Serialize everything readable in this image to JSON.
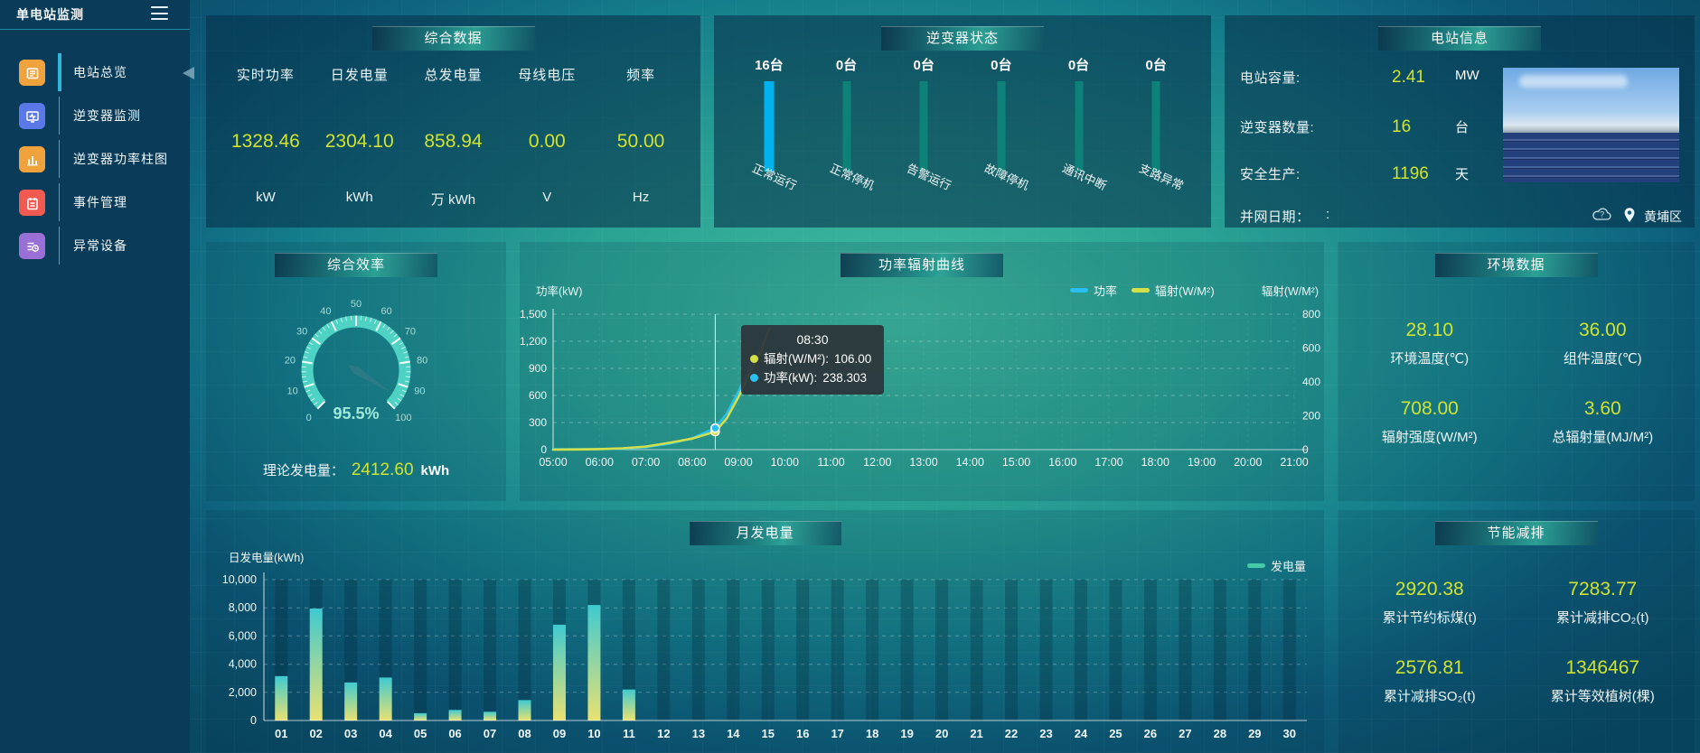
{
  "app": {
    "title": "单电站监测"
  },
  "sidebar": {
    "items": [
      {
        "label": "电站总览",
        "active": true
      },
      {
        "label": "逆变器监测",
        "active": false
      },
      {
        "label": "逆变器功率柱图",
        "active": false
      },
      {
        "label": "事件管理",
        "active": false
      },
      {
        "label": "异常设备",
        "active": false
      }
    ]
  },
  "panels": {
    "summary": {
      "title": "综合数据",
      "metrics": [
        {
          "label": "实时功率",
          "value": "1328.46",
          "unit": "kW"
        },
        {
          "label": "日发电量",
          "value": "2304.10",
          "unit": "kWh"
        },
        {
          "label": "总发电量",
          "value": "858.94",
          "unit": "万 kWh"
        },
        {
          "label": "母线电压",
          "value": "0.00",
          "unit": "V"
        },
        {
          "label": "频率",
          "value": "50.00",
          "unit": "Hz"
        }
      ]
    },
    "inverter_status": {
      "title": "逆变器状态",
      "bars": [
        {
          "count": "16台",
          "label": "正常运行",
          "highlight": true
        },
        {
          "count": "0台",
          "label": "正常停机",
          "highlight": false
        },
        {
          "count": "0台",
          "label": "告警运行",
          "highlight": false
        },
        {
          "count": "0台",
          "label": "故障停机",
          "highlight": false
        },
        {
          "count": "0台",
          "label": "通讯中断",
          "highlight": false
        },
        {
          "count": "0台",
          "label": "支路异常",
          "highlight": false
        }
      ]
    },
    "station_info": {
      "title": "电站信息",
      "rows": [
        {
          "label": "电站容量:",
          "value": "2.41",
          "unit": "MW"
        },
        {
          "label": "逆变器数量:",
          "value": "16",
          "unit": "台"
        },
        {
          "label": "安全生产:",
          "value": "1196",
          "unit": "天"
        },
        {
          "label": "并网日期：",
          "value": ":",
          "unit": ""
        }
      ],
      "location": "黄埔区"
    },
    "efficiency": {
      "title": "综合效率",
      "theory_label": "理论发电量：",
      "theory_value": "2412.60",
      "theory_unit": "kWh"
    },
    "power_chart": {
      "title": "功率辐射曲线",
      "y_left": "功率(kW)",
      "y_right": "辐射(W/M²)",
      "legend": [
        {
          "label": "功率",
          "color": "#29c0f0"
        },
        {
          "label": "辐射(W/M²)",
          "color": "#d4e04a"
        }
      ],
      "tooltip": {
        "time": "08:30",
        "rows": [
          {
            "label": "辐射(W/M²):",
            "value": "106.00",
            "color": "#d4e04a"
          },
          {
            "label": "功率(kW):",
            "value": "238.303",
            "color": "#29c0f0"
          }
        ]
      }
    },
    "environment": {
      "title": "环境数据",
      "metrics": [
        {
          "value": "28.10",
          "label": "环境温度(℃)"
        },
        {
          "value": "36.00",
          "label": "组件温度(℃)"
        },
        {
          "value": "708.00",
          "label": "辐射强度(W/M²)"
        },
        {
          "value": "3.60",
          "label": "总辐射量(MJ/M²)"
        }
      ]
    },
    "monthly": {
      "title": "月发电量",
      "y_label": "日发电量(kWh)",
      "legend": "发电量"
    },
    "saving": {
      "title": "节能减排",
      "metrics": [
        {
          "value": "2920.38",
          "label": "累计节约标煤(t)"
        },
        {
          "value": "7283.77",
          "label": "累计减排CO₂(t)"
        },
        {
          "value": "2576.81",
          "label": "累计减排SO₂(t)"
        },
        {
          "value": "1346467",
          "label": "累计等效植树(棵)"
        }
      ]
    }
  },
  "chart_data": [
    {
      "type": "gauge",
      "title": "综合效率",
      "min": 0,
      "max": 100,
      "tick_step": 10,
      "value": 95.5,
      "value_label": "95.5%",
      "band_color": "#4dd2c3"
    },
    {
      "type": "line",
      "title": "功率辐射曲线",
      "x_range": [
        5,
        21
      ],
      "x_ticks": [
        "05:00",
        "06:00",
        "07:00",
        "08:00",
        "09:00",
        "10:00",
        "11:00",
        "12:00",
        "13:00",
        "14:00",
        "15:00",
        "16:00",
        "17:00",
        "18:00",
        "19:00",
        "20:00",
        "21:00"
      ],
      "ylim_left": [
        0,
        1500
      ],
      "ytick_step_left": 300,
      "ylim_right": [
        0,
        800
      ],
      "ytick_step_right": 200,
      "series": [
        {
          "name": "功率",
          "axis": "left",
          "color": "#29c0f0",
          "points": [
            [
              5,
              4
            ],
            [
              5.5,
              4
            ],
            [
              6,
              6
            ],
            [
              6.5,
              10
            ],
            [
              7,
              28
            ],
            [
              7.5,
              65
            ],
            [
              8,
              125
            ],
            [
              8.5,
              238.3
            ],
            [
              8.75,
              400
            ],
            [
              9,
              640
            ],
            [
              9.25,
              920
            ],
            [
              9.5,
              1180
            ],
            [
              9.67,
              1335
            ]
          ]
        },
        {
          "name": "辐射(W/M²)",
          "axis": "right",
          "color": "#d4e04a",
          "points": [
            [
              5,
              0
            ],
            [
              5.5,
              1
            ],
            [
              6,
              3
            ],
            [
              6.5,
              8
            ],
            [
              7,
              18
            ],
            [
              7.5,
              40
            ],
            [
              8,
              65
            ],
            [
              8.5,
              106
            ],
            [
              8.75,
              185
            ],
            [
              9,
              310
            ],
            [
              9.25,
              455
            ],
            [
              9.5,
              590
            ],
            [
              9.67,
              718
            ]
          ]
        }
      ],
      "hover": {
        "x": 8.5,
        "time": "08:30",
        "power": 238.303,
        "radiation": 106.0
      }
    },
    {
      "type": "bar",
      "title": "月发电量",
      "ylabel": "日发电量(kWh)",
      "ylim": [
        0,
        10000
      ],
      "ytick_step": 2000,
      "legend": "发电量",
      "categories": [
        "01",
        "02",
        "03",
        "04",
        "05",
        "06",
        "07",
        "08",
        "09",
        "10",
        "11",
        "12",
        "13",
        "14",
        "15",
        "16",
        "17",
        "18",
        "19",
        "20",
        "21",
        "22",
        "23",
        "24",
        "25",
        "26",
        "27",
        "28",
        "29",
        "30"
      ],
      "values": [
        3150,
        7950,
        2700,
        3050,
        520,
        750,
        620,
        1450,
        6800,
        8200,
        2200,
        0,
        0,
        0,
        0,
        0,
        0,
        0,
        0,
        0,
        0,
        0,
        0,
        0,
        0,
        0,
        0,
        0,
        0,
        0
      ],
      "bar_gradient": [
        "#3fcad0",
        "#e9e171"
      ]
    },
    {
      "type": "bar",
      "title": "逆变器状态",
      "unit": "台",
      "categories": [
        "正常运行",
        "正常停机",
        "告警运行",
        "故障停机",
        "通讯中断",
        "支路异常"
      ],
      "values": [
        16,
        0,
        0,
        0,
        0,
        0
      ]
    }
  ]
}
